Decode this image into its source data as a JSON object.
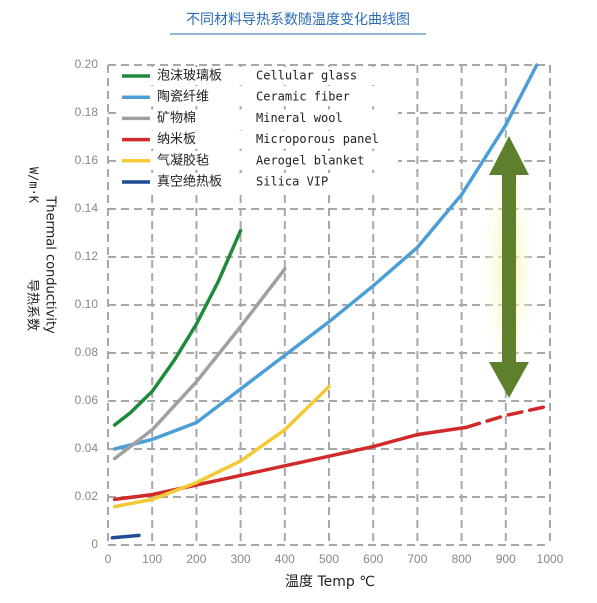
{
  "chart_data": {
    "type": "line",
    "title": "不同材料导热系数随温度变化曲线图",
    "y_label_cn": "导热系数",
    "y_label_en": "Thermal conductivity",
    "y_unit": "W/m·K",
    "x_label": "温度 Temp ℃",
    "xlim": [
      0,
      1000
    ],
    "xticks": [
      0,
      100,
      200,
      300,
      400,
      500,
      600,
      700,
      800,
      900,
      1000
    ],
    "ylim": [
      0,
      0.2
    ],
    "yticks": [
      0,
      0.02,
      0.04,
      0.06,
      0.08,
      {
        "value": 0.1,
        "label": "0.10"
      },
      0.12,
      0.14,
      0.16,
      0.18,
      {
        "value": 0.2,
        "label": "0.20"
      }
    ],
    "grid": true,
    "series": [
      {
        "name": "泡沫玻璃板",
        "name_en": "Cellular glass",
        "color": "#1f8a3c",
        "x": [
          15,
          50,
          100,
          150,
          200,
          250,
          300
        ],
        "values": [
          0.05,
          0.055,
          0.064,
          0.077,
          0.092,
          0.11,
          0.131
        ]
      },
      {
        "name": "陶瓷纤维",
        "name_en": "Ceramic fiber",
        "color": "#4b9fd6",
        "x": [
          15,
          100,
          200,
          300,
          400,
          500,
          600,
          700,
          800,
          900,
          970
        ],
        "values": [
          0.04,
          0.044,
          0.051,
          0.065,
          0.079,
          0.093,
          0.108,
          0.124,
          0.146,
          0.175,
          0.2
        ]
      },
      {
        "name": "矿物棉",
        "name_en": "Mineral wool",
        "color": "#a0a0a0",
        "x": [
          15,
          100,
          200,
          300,
          400
        ],
        "values": [
          0.036,
          0.048,
          0.068,
          0.091,
          0.115
        ]
      },
      {
        "name": "纳米板",
        "name_en": "Microporous panel",
        "color": "#d12a2a",
        "x": [
          15,
          100,
          200,
          300,
          400,
          500,
          600,
          700,
          810,
          900,
          1000
        ],
        "values": [
          0.019,
          0.021,
          0.025,
          0.029,
          0.033,
          0.037,
          0.041,
          0.046,
          0.049,
          0.054,
          0.058
        ],
        "dashed_from": 8
      },
      {
        "name": "气凝胶毡",
        "name_en": "Aerogel blanket",
        "color": "#f4c934",
        "x": [
          15,
          100,
          200,
          300,
          400,
          500
        ],
        "values": [
          0.016,
          0.019,
          0.026,
          0.035,
          0.048,
          0.066
        ]
      },
      {
        "name": "真空绝热板",
        "name_en": "Silica VIP",
        "color": "#1f4e96",
        "x": [
          10,
          70
        ],
        "values": [
          0.003,
          0.004
        ]
      }
    ]
  }
}
